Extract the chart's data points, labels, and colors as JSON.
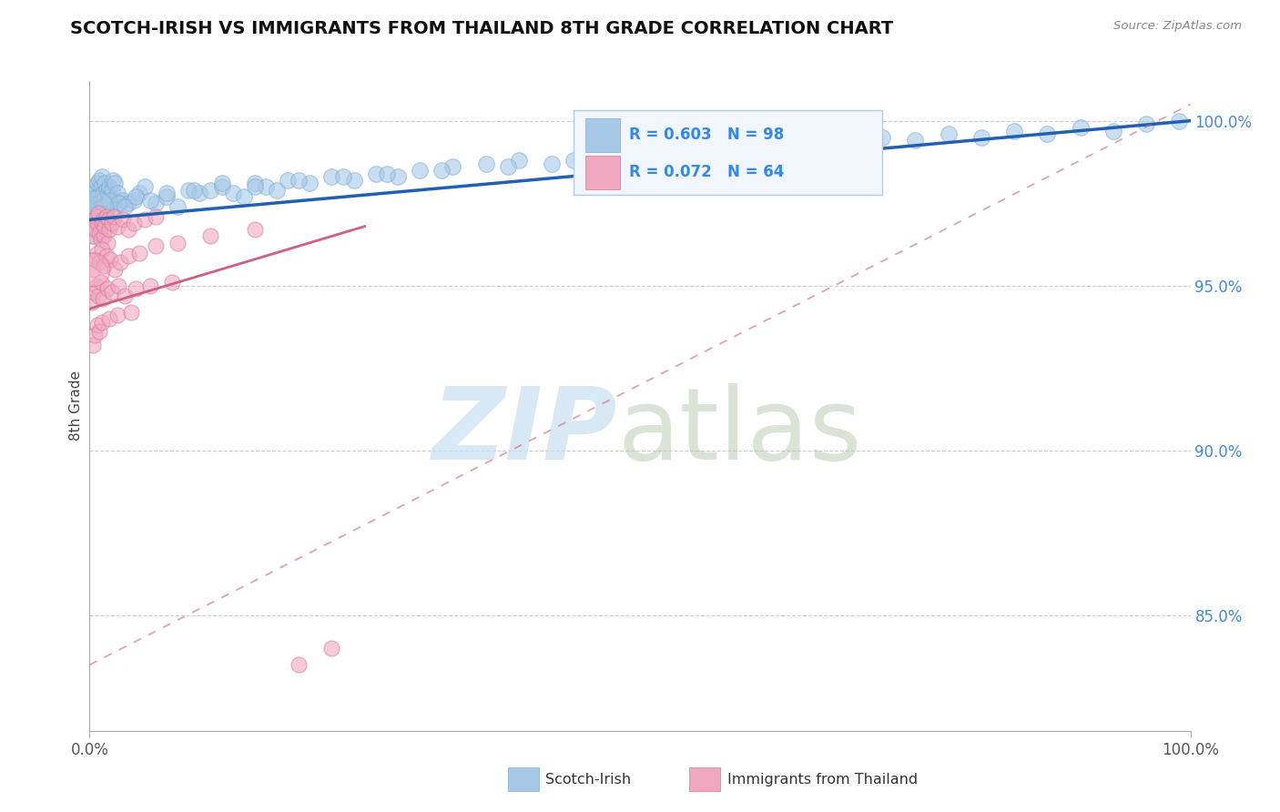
{
  "title": "SCOTCH-IRISH VS IMMIGRANTS FROM THAILAND 8TH GRADE CORRELATION CHART",
  "source": "Source: ZipAtlas.com",
  "ylabel": "8th Grade",
  "ylabel_right_ticks": [
    85.0,
    90.0,
    95.0,
    100.0
  ],
  "xmin": 0.0,
  "xmax": 100.0,
  "ymin": 81.5,
  "ymax": 101.2,
  "blue_R": 0.603,
  "blue_N": 98,
  "pink_R": 0.072,
  "pink_N": 64,
  "blue_color": "#a8c8e8",
  "blue_edge_color": "#7aaed0",
  "blue_line_color": "#2060b0",
  "pink_color": "#f0a8c0",
  "pink_edge_color": "#d87898",
  "pink_line_color": "#d06080",
  "legend_label_blue": "Scotch-Irish",
  "legend_label_pink": "Immigrants from Thailand",
  "blue_line_x0": 0.0,
  "blue_line_x1": 100.0,
  "blue_line_y0": 97.0,
  "blue_line_y1": 100.0,
  "pink_solid_x0": 0.0,
  "pink_solid_x1": 25.0,
  "pink_solid_y0": 94.3,
  "pink_solid_y1": 96.8,
  "pink_dash_x0": 0.0,
  "pink_dash_x1": 100.0,
  "pink_dash_y0": 83.5,
  "pink_dash_y1": 100.5,
  "grid_color": "#cccccc",
  "bg_color": "#ffffff",
  "blue_scatter_x": [
    0.2,
    0.3,
    0.4,
    0.5,
    0.5,
    0.6,
    0.7,
    0.7,
    0.8,
    0.9,
    1.0,
    1.0,
    1.1,
    1.2,
    1.3,
    1.4,
    1.5,
    1.6,
    1.7,
    1.8,
    1.9,
    2.0,
    2.1,
    2.2,
    2.3,
    2.5,
    2.7,
    3.0,
    3.5,
    4.0,
    4.5,
    5.0,
    6.0,
    7.0,
    8.0,
    9.0,
    10.0,
    11.0,
    12.0,
    13.0,
    14.0,
    15.0,
    16.0,
    17.0,
    18.0,
    20.0,
    22.0,
    24.0,
    26.0,
    28.0,
    30.0,
    33.0,
    36.0,
    39.0,
    42.0,
    45.0,
    48.0,
    51.0,
    54.0,
    57.0,
    60.0,
    63.0,
    66.0,
    69.0,
    72.0,
    75.0,
    78.0,
    81.0,
    84.0,
    87.0,
    90.0,
    93.0,
    96.0,
    99.0,
    0.4,
    0.6,
    0.8,
    1.0,
    1.2,
    1.5,
    1.8,
    2.2,
    2.6,
    3.2,
    4.2,
    5.5,
    7.0,
    9.5,
    12.0,
    15.0,
    19.0,
    23.0,
    27.0,
    32.0,
    38.0,
    44.0,
    52.0,
    62.0
  ],
  "blue_scatter_y": [
    97.5,
    97.8,
    97.6,
    98.0,
    97.4,
    97.9,
    98.1,
    97.7,
    97.5,
    98.2,
    97.6,
    98.0,
    98.3,
    97.8,
    97.6,
    98.1,
    97.9,
    97.5,
    97.8,
    98.0,
    97.7,
    97.9,
    98.2,
    97.6,
    98.1,
    97.8,
    97.5,
    97.6,
    97.5,
    97.6,
    97.8,
    98.0,
    97.5,
    97.7,
    97.4,
    97.9,
    97.8,
    97.9,
    98.0,
    97.8,
    97.7,
    98.1,
    98.0,
    97.9,
    98.2,
    98.1,
    98.3,
    98.2,
    98.4,
    98.3,
    98.5,
    98.6,
    98.7,
    98.8,
    98.7,
    98.9,
    99.0,
    99.1,
    99.0,
    99.2,
    99.1,
    99.3,
    99.2,
    99.4,
    99.5,
    99.4,
    99.6,
    99.5,
    99.7,
    99.6,
    99.8,
    99.7,
    99.9,
    100.0,
    96.5,
    97.1,
    97.3,
    97.0,
    97.4,
    97.2,
    97.6,
    97.3,
    97.5,
    97.4,
    97.7,
    97.6,
    97.8,
    97.9,
    98.1,
    98.0,
    98.2,
    98.3,
    98.4,
    98.5,
    98.6,
    98.8,
    99.0,
    99.3
  ],
  "pink_scatter_x": [
    0.2,
    0.3,
    0.4,
    0.5,
    0.6,
    0.7,
    0.8,
    0.9,
    1.0,
    1.1,
    1.2,
    1.3,
    1.4,
    1.5,
    1.6,
    1.7,
    1.8,
    2.0,
    2.2,
    2.5,
    3.0,
    3.5,
    4.0,
    5.0,
    6.0,
    0.3,
    0.5,
    0.7,
    0.9,
    1.1,
    1.3,
    1.5,
    1.9,
    2.3,
    2.8,
    3.5,
    4.5,
    6.0,
    8.0,
    11.0,
    15.0,
    0.2,
    0.4,
    0.6,
    0.8,
    1.0,
    1.2,
    1.6,
    2.0,
    2.6,
    3.2,
    4.2,
    5.5,
    7.5,
    0.3,
    0.5,
    0.7,
    0.9,
    1.1,
    1.8,
    2.5,
    3.8,
    19.0,
    22.0
  ],
  "pink_scatter_y": [
    96.5,
    96.8,
    97.0,
    96.7,
    97.1,
    96.9,
    97.2,
    96.6,
    96.4,
    96.9,
    97.0,
    96.5,
    96.8,
    97.1,
    96.3,
    97.0,
    96.7,
    96.9,
    97.1,
    96.8,
    97.0,
    96.7,
    96.9,
    97.0,
    97.1,
    95.5,
    95.8,
    96.0,
    95.7,
    96.1,
    95.6,
    95.9,
    95.8,
    95.5,
    95.7,
    95.9,
    96.0,
    96.2,
    96.3,
    96.5,
    96.7,
    94.5,
    94.8,
    95.0,
    94.7,
    95.1,
    94.6,
    94.9,
    94.8,
    95.0,
    94.7,
    94.9,
    95.0,
    95.1,
    93.2,
    93.5,
    93.8,
    93.6,
    93.9,
    94.0,
    94.1,
    94.2,
    83.5,
    84.0
  ],
  "big_blue_dot_x": 0.5,
  "big_blue_dot_y": 97.3,
  "big_pink_dot_x": 0.3,
  "big_pink_dot_y": 95.5
}
